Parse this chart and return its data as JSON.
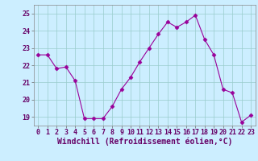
{
  "x": [
    0,
    1,
    2,
    3,
    4,
    5,
    6,
    7,
    8,
    9,
    10,
    11,
    12,
    13,
    14,
    15,
    16,
    17,
    18,
    19,
    20,
    21,
    22,
    23
  ],
  "y": [
    22.6,
    22.6,
    21.8,
    21.9,
    21.1,
    18.9,
    18.9,
    18.9,
    19.6,
    20.6,
    21.3,
    22.2,
    23.0,
    23.8,
    24.5,
    24.2,
    24.5,
    24.9,
    23.5,
    22.6,
    20.6,
    20.4,
    18.7,
    19.1
  ],
  "line_color": "#990099",
  "marker": "D",
  "marker_size": 2.5,
  "bg_color": "#cceeff",
  "grid_color": "#99cccc",
  "xlabel": "Windchill (Refroidissement éolien,°C)",
  "ylabel": "",
  "xlim": [
    -0.5,
    23.5
  ],
  "ylim": [
    18.5,
    25.5
  ],
  "yticks": [
    19,
    20,
    21,
    22,
    23,
    24,
    25
  ],
  "xticks": [
    0,
    1,
    2,
    3,
    4,
    5,
    6,
    7,
    8,
    9,
    10,
    11,
    12,
    13,
    14,
    15,
    16,
    17,
    18,
    19,
    20,
    21,
    22,
    23
  ],
  "tick_fontsize": 6,
  "xlabel_fontsize": 7
}
